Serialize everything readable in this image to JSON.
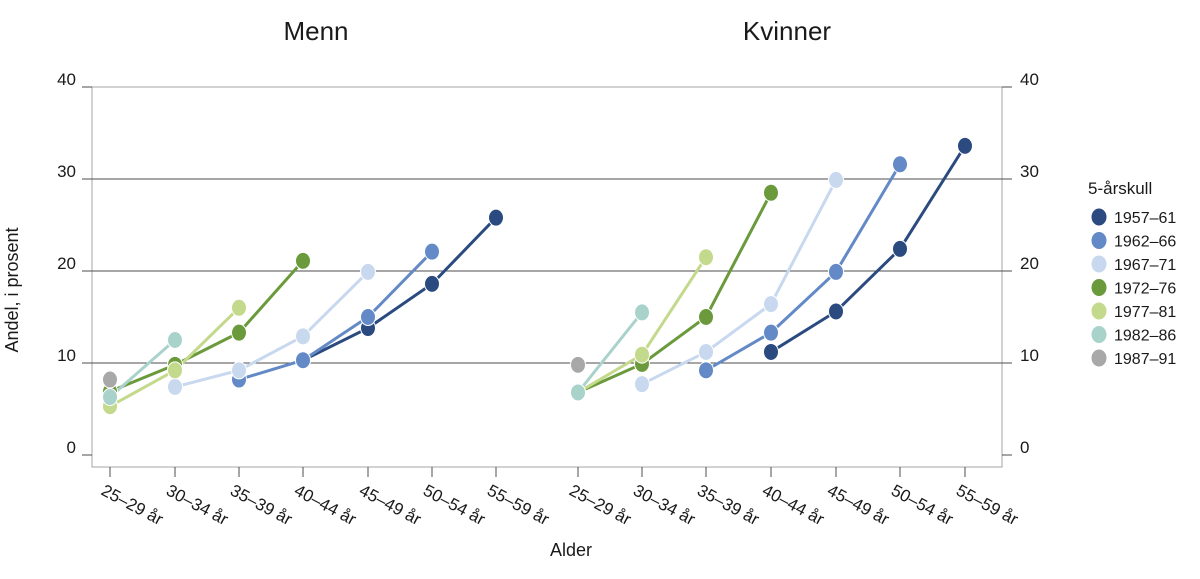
{
  "chart_data": {
    "type": "line",
    "ylabel": "Andel, i prosent",
    "xlabel": "Alder",
    "ylim": [
      0,
      40
    ],
    "yticks": [
      "0",
      "10",
      "20",
      "30",
      "40"
    ],
    "categories": [
      "25–29 år",
      "30–34 år",
      "35–39 år",
      "40–44 år",
      "45–49 år",
      "50–54 år",
      "55–59 år"
    ],
    "legend": {
      "title": "5-årskull",
      "position": "right"
    },
    "panels": [
      {
        "title": "Menn",
        "series": [
          {
            "name": "1957–61",
            "color": "#2b4a80",
            "values": [
              null,
              null,
              null,
              10.3,
              13.8,
              18.6,
              25.8
            ]
          },
          {
            "name": "1962–66",
            "color": "#6389c6",
            "values": [
              null,
              null,
              8.2,
              10.3,
              15.0,
              22.1,
              null
            ]
          },
          {
            "name": "1967–71",
            "color": "#c8d8ee",
            "values": [
              null,
              7.4,
              9.2,
              12.9,
              19.9,
              null,
              null
            ]
          },
          {
            "name": "1972–76",
            "color": "#6b9a3c",
            "values": [
              6.9,
              9.8,
              13.3,
              21.1,
              null,
              null,
              null
            ]
          },
          {
            "name": "1977–81",
            "color": "#c3d98c",
            "values": [
              5.3,
              9.2,
              16.0,
              null,
              null,
              null,
              null
            ]
          },
          {
            "name": "1982–86",
            "color": "#a9d2cb",
            "values": [
              6.3,
              12.5,
              null,
              null,
              null,
              null,
              null
            ]
          },
          {
            "name": "1987–91",
            "color": "#a8a8a8",
            "values": [
              8.2,
              null,
              null,
              null,
              null,
              null,
              null
            ]
          }
        ]
      },
      {
        "title": "Kvinner",
        "series": [
          {
            "name": "1957–61",
            "color": "#2b4a80",
            "values": [
              null,
              null,
              null,
              11.2,
              15.6,
              22.4,
              33.6
            ]
          },
          {
            "name": "1962–66",
            "color": "#6389c6",
            "values": [
              null,
              null,
              9.2,
              13.3,
              19.9,
              31.6,
              null
            ]
          },
          {
            "name": "1967–71",
            "color": "#c8d8ee",
            "values": [
              null,
              7.7,
              11.2,
              16.4,
              29.9,
              null,
              null
            ]
          },
          {
            "name": "1972–76",
            "color": "#6b9a3c",
            "values": [
              6.8,
              9.9,
              15.0,
              28.5,
              null,
              null,
              null
            ]
          },
          {
            "name": "1977–81",
            "color": "#c3d98c",
            "values": [
              6.8,
              10.9,
              21.5,
              null,
              null,
              null,
              null
            ]
          },
          {
            "name": "1982–86",
            "color": "#a9d2cb",
            "values": [
              6.8,
              15.5,
              null,
              null,
              null,
              null,
              null
            ]
          },
          {
            "name": "1987–91",
            "color": "#a8a8a8",
            "values": [
              9.8,
              null,
              null,
              null,
              null,
              null,
              null
            ]
          }
        ]
      }
    ]
  }
}
